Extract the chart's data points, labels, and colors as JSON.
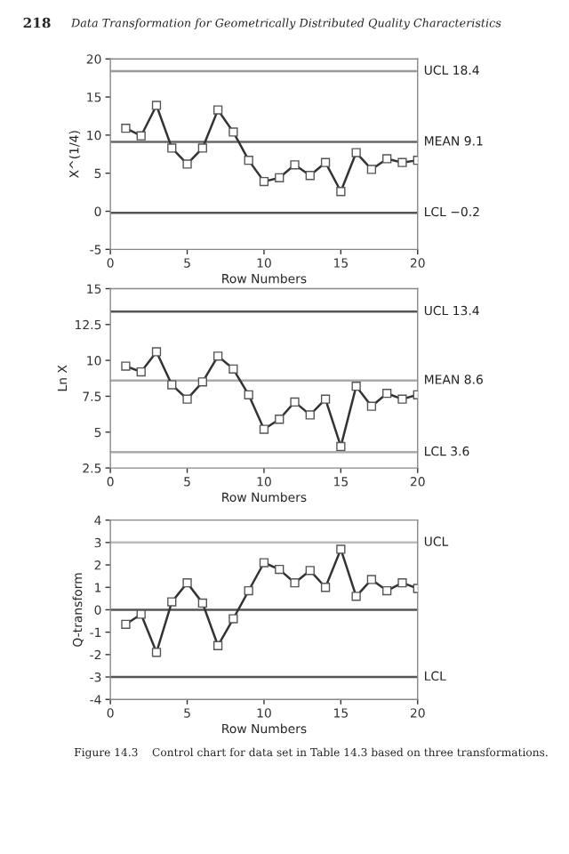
{
  "chart_data": [
    {
      "type": "line",
      "xlabel": "Row Numbers",
      "ylabel": "X^(1/4)",
      "annotations": [
        "218",
        "Data Transformation for Geometrically Distributed Quality Characteristics"
      ],
      "x": [
        1,
        2,
        3,
        4,
        5,
        6,
        7,
        8,
        9,
        10,
        11,
        12,
        13,
        14,
        15,
        16,
        17,
        18,
        19,
        20
      ],
      "series": [
        {
          "color": "#333333",
          "values": [
            10.9,
            9.9,
            13.9,
            8.3,
            6.2,
            8.3,
            13.3,
            10.4,
            6.7,
            3.9,
            4.4,
            6.1,
            4.7,
            6.4,
            2.6,
            7.7,
            5.5,
            6.9,
            6.4,
            6.7
          ]
        }
      ],
      "marker": "square",
      "xlim": [
        0,
        20
      ],
      "xticks": [
        0,
        5,
        10,
        15,
        20
      ],
      "ylim": [
        -5,
        20
      ],
      "yticks": [
        -5,
        0,
        5,
        10,
        15,
        20
      ],
      "ref_lines": [
        {
          "axis": "y",
          "value": 18.4,
          "label": "UCL 18.4",
          "color": "#999999"
        },
        {
          "axis": "y",
          "value": 9.1,
          "label": "MEAN 9.1",
          "color": "#666666"
        },
        {
          "axis": "y",
          "value": -0.2,
          "label": "LCL −0.2",
          "color": "#555555"
        }
      ]
    },
    {
      "type": "line",
      "xlabel": "Row Numbers",
      "ylabel": "Ln X",
      "x": [
        1,
        2,
        3,
        4,
        5,
        6,
        7,
        8,
        9,
        10,
        11,
        12,
        13,
        14,
        15,
        16,
        17,
        18,
        19,
        20
      ],
      "series": [
        {
          "color": "#333333",
          "values": [
            9.6,
            9.2,
            10.6,
            8.3,
            7.3,
            8.5,
            10.3,
            9.4,
            7.6,
            5.2,
            5.9,
            7.1,
            6.2,
            7.3,
            4.0,
            8.2,
            6.8,
            7.7,
            7.3,
            7.6
          ]
        }
      ],
      "marker": "square",
      "xlim": [
        0,
        20
      ],
      "xticks": [
        0,
        5,
        10,
        15,
        20
      ],
      "ylim": [
        2.5,
        15
      ],
      "yticks": [
        2.5,
        5,
        7.5,
        10,
        12.5,
        15
      ],
      "ref_lines": [
        {
          "axis": "y",
          "value": 13.4,
          "label": "UCL 13.4",
          "color": "#555555"
        },
        {
          "axis": "y",
          "value": 8.6,
          "label": "MEAN 8.6",
          "color": "#aaaaaa"
        },
        {
          "axis": "y",
          "value": 3.6,
          "label": "LCL 3.6",
          "color": "#aaaaaa"
        }
      ]
    },
    {
      "type": "line",
      "xlabel": "Row Numbers",
      "ylabel": "Q-transform",
      "annotations": [
        "Figure 14.3    Control chart for data set in Table 14.3 based on three transformations."
      ],
      "x": [
        1,
        2,
        3,
        4,
        5,
        6,
        7,
        8,
        9,
        10,
        11,
        12,
        13,
        14,
        15,
        16,
        17,
        18,
        19,
        20
      ],
      "series": [
        {
          "color": "#333333",
          "values": [
            -0.65,
            -0.2,
            -1.9,
            0.35,
            1.2,
            0.3,
            -1.6,
            -0.4,
            0.85,
            2.1,
            1.8,
            1.2,
            1.75,
            1.0,
            2.7,
            0.6,
            1.35,
            0.85,
            1.2,
            0.95
          ]
        }
      ],
      "marker": "square",
      "xlim": [
        0,
        20
      ],
      "xticks": [
        0,
        5,
        10,
        15,
        20
      ],
      "ylim": [
        -4,
        4
      ],
      "yticks": [
        -4,
        -3,
        -2,
        -1,
        0,
        1,
        2,
        3,
        4
      ],
      "ref_lines": [
        {
          "axis": "y",
          "value": 3,
          "label": "UCL",
          "color": "#bbbbbb"
        },
        {
          "axis": "y",
          "value": 0,
          "label": null,
          "color": "#555555"
        },
        {
          "axis": "y",
          "value": -3,
          "label": "LCL",
          "color": "#555555"
        }
      ]
    }
  ]
}
